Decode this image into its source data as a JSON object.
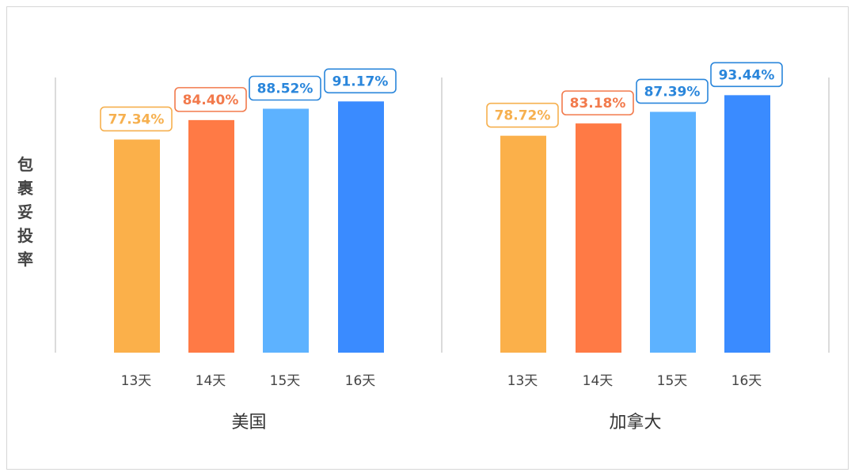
{
  "chart_data": {
    "type": "bar",
    "ylabel": "包裹妥投率",
    "ylim": [
      0,
      100
    ],
    "grid": false,
    "groups": [
      {
        "name": "美国",
        "categories": [
          "13天",
          "14天",
          "15天",
          "16天"
        ],
        "values": [
          77.34,
          84.4,
          88.52,
          91.17
        ],
        "labels": [
          "77.34%",
          "84.40%",
          "88.52%",
          "91.17%"
        ]
      },
      {
        "name": "加拿大",
        "categories": [
          "13天",
          "14天",
          "15天",
          "16天"
        ],
        "values": [
          78.72,
          83.18,
          87.39,
          93.44
        ],
        "labels": [
          "78.72%",
          "83.18%",
          "87.39%",
          "93.44%"
        ]
      }
    ],
    "colors": {
      "bars": [
        "#FBB04A",
        "#FF7A45",
        "#5DB2FF",
        "#3A8BFF"
      ],
      "labels": [
        "#F6B04F",
        "#F27A4C",
        "#2A86DB",
        "#2A86DB"
      ]
    }
  }
}
